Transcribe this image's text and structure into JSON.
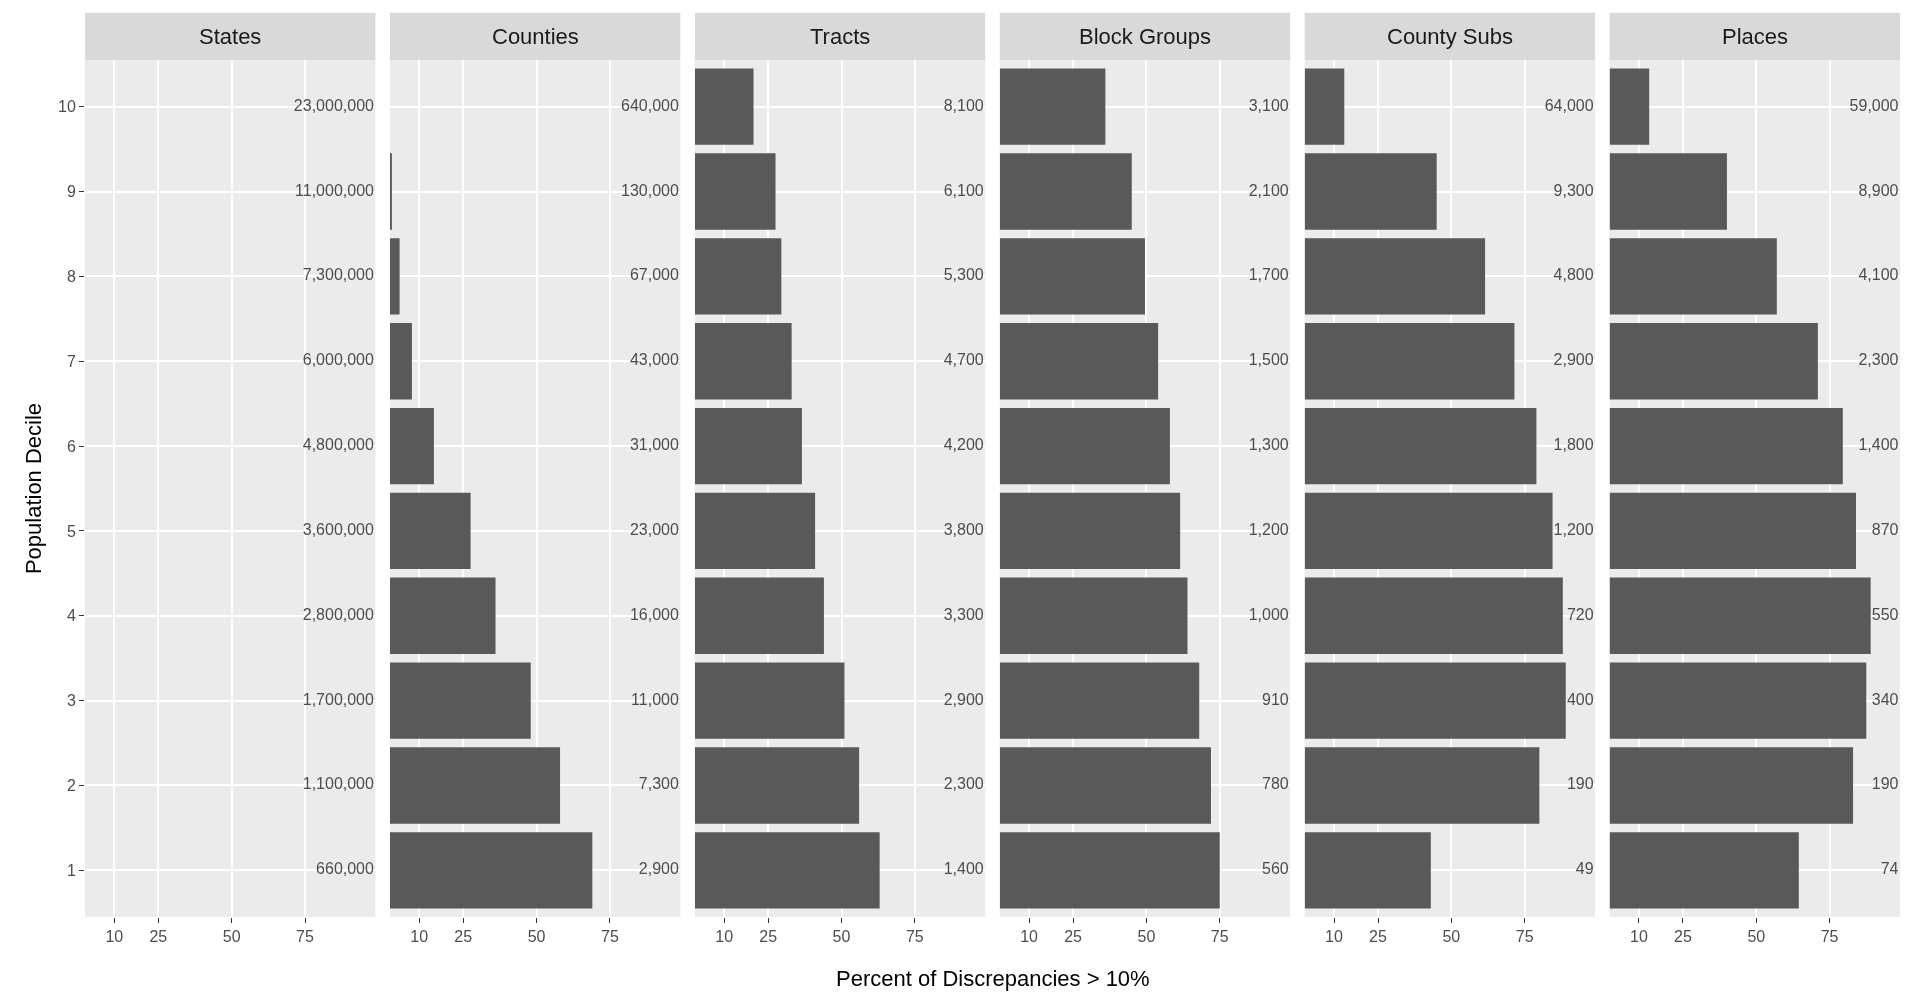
{
  "chart_data": [
    {
      "type": "bar",
      "orientation": "horizontal",
      "title": "States",
      "ylabel": "Population Decile",
      "categories": [
        "10",
        "9",
        "8",
        "7",
        "6",
        "5",
        "4",
        "3",
        "2",
        "1"
      ],
      "values": [
        0,
        0,
        0,
        0,
        0,
        0,
        0,
        0,
        0,
        0
      ],
      "color": "#595959",
      "xlim": [
        0,
        99
      ],
      "xticks": [
        10,
        25,
        50,
        75
      ],
      "grid": true,
      "annotations": [
        "23,000,000",
        "11,000,000",
        "7,300,000",
        "6,000,000",
        "4,800,000",
        "3,600,000",
        "2,800,000",
        "1,700,000",
        "1,100,000",
        "660,000"
      ]
    },
    {
      "type": "bar",
      "orientation": "horizontal",
      "title": "Counties",
      "categories": [
        "10",
        "9",
        "8",
        "7",
        "6",
        "5",
        "4",
        "3",
        "2",
        "1"
      ],
      "values": [
        0,
        0.5,
        3.3,
        7.5,
        15,
        27.5,
        36,
        48,
        58,
        69
      ],
      "color": "#595959",
      "xlim": [
        0,
        99
      ],
      "xticks": [
        10,
        25,
        50,
        75
      ],
      "grid": true,
      "tick_labels": "x",
      "annotations": [
        "640,000",
        "130,000",
        "67,000",
        "43,000",
        "31,000",
        "23,000",
        "16,000",
        "11,000",
        "7,300",
        "2,900"
      ]
    },
    {
      "type": "bar",
      "orientation": "horizontal",
      "title": "Tracts",
      "categories": [
        "10",
        "9",
        "8",
        "7",
        "6",
        "5",
        "4",
        "3",
        "2",
        "1"
      ],
      "values": [
        20,
        27.5,
        29.5,
        33,
        36.5,
        41,
        44,
        51,
        56,
        63
      ],
      "color": "#595959",
      "xlim": [
        0,
        99
      ],
      "xticks": [
        10,
        25,
        50,
        75
      ],
      "grid": true,
      "tick_labels": "x",
      "annotations": [
        "8,100",
        "6,100",
        "5,300",
        "4,700",
        "4,200",
        "3,800",
        "3,300",
        "2,900",
        "2,300",
        "1,400"
      ]
    },
    {
      "type": "bar",
      "orientation": "horizontal",
      "title": "Block Groups",
      "xlabel": "Percent of Discrepancies > 10%",
      "categories": [
        "10",
        "9",
        "8",
        "7",
        "6",
        "5",
        "4",
        "3",
        "2",
        "1"
      ],
      "values": [
        36,
        45,
        49.5,
        54,
        58,
        61.5,
        64,
        68,
        72,
        75
      ],
      "color": "#595959",
      "xlim": [
        0,
        99
      ],
      "xticks": [
        10,
        25,
        50,
        75
      ],
      "grid": true,
      "tick_labels": "x",
      "annotations": [
        "3,100",
        "2,100",
        "1,700",
        "1,500",
        "1,300",
        "1,200",
        "1,000",
        "910",
        "780",
        "560"
      ]
    },
    {
      "type": "bar",
      "orientation": "horizontal",
      "title": "County Subs",
      "categories": [
        "10",
        "9",
        "8",
        "7",
        "6",
        "5",
        "4",
        "3",
        "2",
        "1"
      ],
      "values": [
        13.5,
        45,
        61.5,
        71.5,
        79,
        84.5,
        88,
        89,
        80,
        43
      ],
      "color": "#595959",
      "xlim": [
        0,
        99
      ],
      "xticks": [
        10,
        25,
        50,
        75
      ],
      "grid": true,
      "tick_labels": "x",
      "annotations": [
        "64,000",
        "9,300",
        "4,800",
        "2,900",
        "1,800",
        "1,200",
        "720",
        "400",
        "190",
        "49"
      ]
    },
    {
      "type": "bar",
      "orientation": "horizontal",
      "title": "Places",
      "categories": [
        "10",
        "9",
        "8",
        "7",
        "6",
        "5",
        "4",
        "3",
        "2",
        "1"
      ],
      "values": [
        13.5,
        40,
        57,
        71,
        79.5,
        84,
        89,
        87.5,
        83,
        64.5
      ],
      "color": "#595959",
      "xlim": [
        0,
        99
      ],
      "xticks": [
        10,
        25,
        50,
        75
      ],
      "grid": true,
      "tick_labels": "x",
      "annotations": [
        "59,000",
        "8,900",
        "4,100",
        "2,300",
        "1,400",
        "870",
        "550",
        "340",
        "190",
        "74"
      ]
    }
  ]
}
